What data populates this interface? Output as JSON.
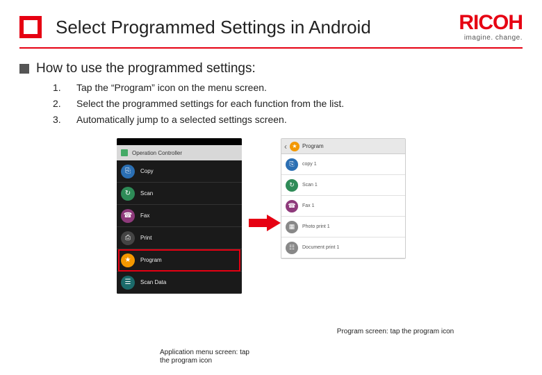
{
  "brand": {
    "name": "RICOH",
    "tagline": "imagine. change.",
    "color": "#e60012"
  },
  "title": "Select Programmed Settings in Android",
  "subtitle": "How to use the programmed settings:",
  "steps": [
    {
      "num": "1.",
      "text": "Tap the “Program” icon on the menu screen."
    },
    {
      "num": "2.",
      "text": "Select the programmed settings for each function from the list."
    },
    {
      "num": "3.",
      "text": "Automatically jump to a selected settings screen."
    }
  ],
  "phone_left": {
    "titlebar": "Operation Controller",
    "items": [
      {
        "label": "Copy",
        "icon_bg": "#2b6fb3",
        "glyph": "⎘"
      },
      {
        "label": "Scan",
        "icon_bg": "#2e8b57",
        "glyph": "↻"
      },
      {
        "label": "Fax",
        "icon_bg": "#8e3a7b",
        "glyph": "☎"
      },
      {
        "label": "Print",
        "icon_bg": "#444444",
        "glyph": "⎙"
      },
      {
        "label": "Program",
        "icon_bg": "#f39800",
        "glyph": "★"
      },
      {
        "label": "Scan Data",
        "icon_bg": "#1b6a6a",
        "glyph": "☰"
      }
    ],
    "highlight_index": 4
  },
  "phone_right": {
    "header": "Program",
    "items": [
      {
        "label": "copy 1",
        "icon_bg": "#2b6fb3",
        "glyph": "⎘"
      },
      {
        "label": "Scan 1",
        "icon_bg": "#2e8b57",
        "glyph": "↻"
      },
      {
        "label": "Fax 1",
        "icon_bg": "#8e3a7b",
        "glyph": "☎"
      },
      {
        "label": "Photo print 1",
        "icon_bg": "#888888",
        "glyph": "▦"
      },
      {
        "label": "Document print 1",
        "icon_bg": "#888888",
        "glyph": "☷"
      }
    ]
  },
  "captions": {
    "left": "Application menu screen: tap the program icon",
    "right": "Program screen: tap the program icon"
  },
  "arrow_color": "#e60012"
}
